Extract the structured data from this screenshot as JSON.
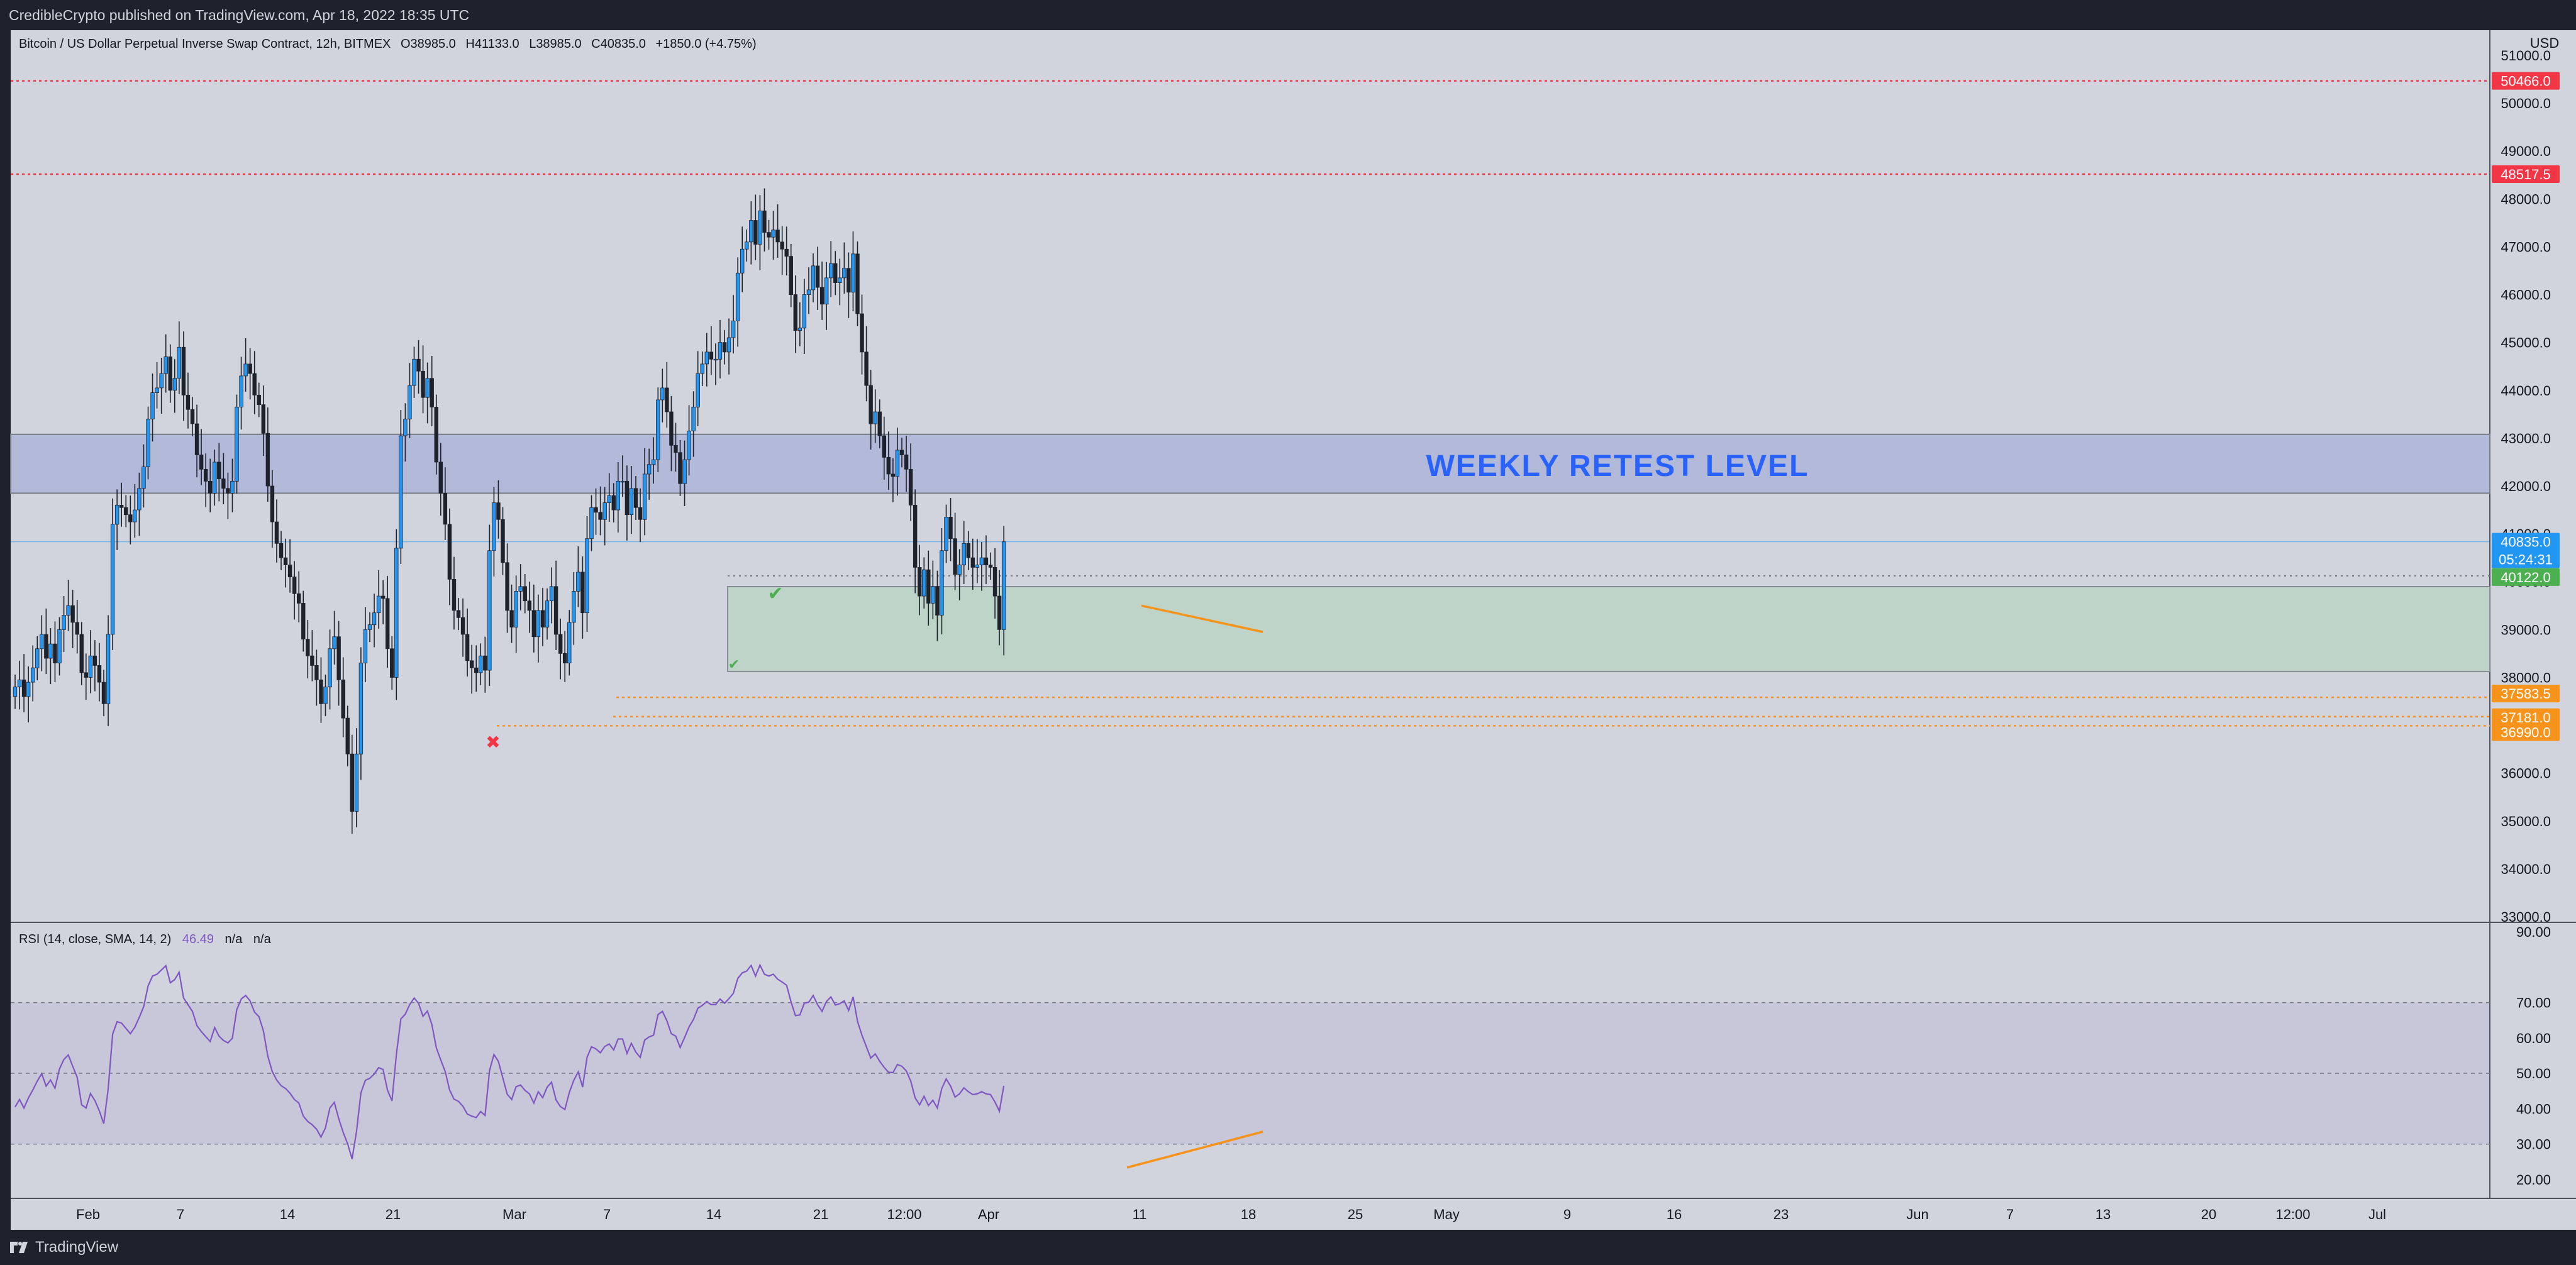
{
  "publisher": "CredibleCrypto published on TradingView.com, Apr 18, 2022 18:35 UTC",
  "footer": {
    "brand": "TradingView"
  },
  "colors": {
    "background": "#d1d4dc",
    "up_candle": "#2196f3",
    "down_candle": "#1e222d",
    "resistance_zone": "#b3b9d8",
    "support_zone": "#bfd4c9",
    "red_level": "#f23645",
    "orange_level": "#f7931a",
    "rsi_line": "#7e57c2",
    "annotation_text": "#2962ff"
  },
  "chart_data": [
    {
      "type": "candlestick",
      "title": "Bitcoin / US Dollar Perpetual Inverse Swap Contract, 12h, BITMEX",
      "ohlc_header": {
        "open_label": "O",
        "open": "38985.0",
        "high_label": "H",
        "high": "41133.0",
        "low_label": "L",
        "low": "38985.0",
        "close_label": "C",
        "close": "40835.0",
        "change": "+1850.0 (+4.75%)"
      },
      "currency_label": "USD",
      "y_ticks": [
        "51000.0",
        "50000.0",
        "49000.0",
        "48000.0",
        "47000.0",
        "46000.0",
        "45000.0",
        "44000.0",
        "43000.0",
        "42000.0",
        "41000.0",
        "40000.0",
        "39000.0",
        "38000.0",
        "37000.0",
        "36000.0",
        "35000.0",
        "34000.0",
        "33000.0"
      ],
      "ylim": [
        33000,
        51500
      ],
      "x_ticks": [
        "Feb",
        "7",
        "14",
        "21",
        "Mar",
        "7",
        "14",
        "21",
        "12:00",
        "Apr",
        "11",
        "18",
        "25",
        "May",
        "9",
        "16",
        "23",
        "Jun",
        "7",
        "13",
        "20",
        "12:00",
        "Jul"
      ],
      "price_levels": [
        {
          "label": "50466.0",
          "value": 50466,
          "color": "#f23645"
        },
        {
          "label": "48517.5",
          "value": 48517.5,
          "color": "#f23645"
        },
        {
          "label": "40122.0",
          "value": 40122,
          "color": "#4caf50"
        },
        {
          "label": "37583.5",
          "value": 37583.5,
          "color": "#f7931a"
        },
        {
          "label": "37181.0",
          "value": 37181,
          "color": "#f7931a"
        },
        {
          "label": "36990.0",
          "value": 36990,
          "color": "#f7931a"
        }
      ],
      "last_price": {
        "label": "40835.0",
        "countdown": "05:24:31",
        "value": 40835
      },
      "zones": [
        {
          "name": "weekly-retest",
          "label": "WEEKLY RETEST LEVEL",
          "from": 41850,
          "to": 43080
        },
        {
          "name": "support",
          "label": "",
          "from": 38120,
          "to": 39900
        }
      ],
      "closes": [
        37800,
        37950,
        37600,
        37900,
        38200,
        38600,
        38900,
        38400,
        38700,
        38300,
        39000,
        39300,
        39500,
        39150,
        38900,
        38100,
        38000,
        38450,
        38250,
        37900,
        37450,
        38900,
        41200,
        41600,
        41550,
        41400,
        41250,
        41500,
        41950,
        42400,
        43400,
        43950,
        44050,
        44350,
        44700,
        44000,
        44250,
        44900,
        43900,
        43600,
        43300,
        42650,
        42350,
        42100,
        41850,
        42500,
        42150,
        41950,
        41850,
        42100,
        43650,
        44300,
        44550,
        44350,
        43900,
        43700,
        43100,
        42000,
        41250,
        40800,
        40500,
        40350,
        40100,
        39750,
        39550,
        38800,
        38450,
        38250,
        37950,
        37450,
        37800,
        38600,
        38850,
        37950,
        37150,
        36400,
        35200,
        36400,
        38300,
        39000,
        39100,
        39350,
        39700,
        39650,
        38600,
        38000,
        40700,
        43050,
        43400,
        44100,
        44650,
        44400,
        43850,
        44250,
        43650,
        42500,
        41850,
        41200,
        40050,
        39400,
        39250,
        38900,
        38350,
        38200,
        38100,
        38450,
        38150,
        40650,
        41650,
        41300,
        40400,
        39400,
        39050,
        39800,
        39900,
        39600,
        39400,
        38850,
        39400,
        39050,
        39600,
        39900,
        38900,
        38500,
        38300,
        39150,
        39800,
        40200,
        39350,
        40900,
        41550,
        41450,
        41300,
        41650,
        41800,
        41500,
        42100,
        42100,
        41400,
        41950,
        41550,
        41300,
        42250,
        42450,
        42550,
        43800,
        44050,
        43550,
        42850,
        42700,
        42050,
        42550,
        43150,
        43650,
        44350,
        44550,
        44800,
        44650,
        44650,
        45000,
        44800,
        45100,
        45450,
        46450,
        46950,
        47100,
        47550,
        47050,
        47750,
        47300,
        47200,
        47350,
        47100,
        46950,
        46800,
        46000,
        45250,
        45300,
        46000,
        46100,
        46600,
        46150,
        45800,
        46350,
        46650,
        46250,
        46350,
        46550,
        46050,
        46850,
        45600,
        44800,
        44100,
        43300,
        43550,
        43050,
        42600,
        42250,
        42200,
        42750,
        42650,
        42350,
        41600,
        40300,
        39700,
        40250,
        39550,
        39900,
        39300,
        40650,
        41350,
        40900,
        40150,
        40350,
        40800,
        40500,
        40300,
        40350,
        40500,
        40350,
        40300,
        39700,
        39000,
        40835
      ]
    },
    {
      "type": "line",
      "title": "RSI (14, close, SMA, 14, 2)",
      "value_label": "46.49",
      "na_1": "n/a",
      "na_2": "n/a",
      "y_ticks": [
        "90.00",
        "70.00",
        "60.00",
        "50.00",
        "40.00",
        "30.00",
        "20.00"
      ],
      "ylim": [
        15,
        90
      ],
      "bands": [
        30,
        50,
        70
      ],
      "values": [
        40.5,
        42.6,
        40.2,
        43,
        45.3,
        47.8,
        49.9,
        46.4,
        48.1,
        45.8,
        51.2,
        53.9,
        55.2,
        52,
        48.9,
        41.1,
        40.2,
        44.3,
        42.3,
        39.4,
        35.8,
        45.6,
        61.1,
        64.6,
        64.2,
        62.7,
        61.2,
        63,
        65.8,
        68.8,
        74.7,
        77.5,
        78,
        79.2,
        80.4,
        75.6,
        76.5,
        78.6,
        71.3,
        69.4,
        67.5,
        63.5,
        61.8,
        60.4,
        59,
        62.9,
        60.5,
        59.3,
        58.6,
        59.9,
        68,
        71,
        72,
        70.5,
        67.3,
        66,
        62,
        54.9,
        50.5,
        48.1,
        46.5,
        45.7,
        44.4,
        42.6,
        41.6,
        37.9,
        36.4,
        35.5,
        34.2,
        32,
        34.6,
        40.2,
        41.8,
        37.2,
        33.3,
        30.1,
        25.8,
        33.6,
        44.5,
        48,
        48.6,
        49.8,
        51.6,
        51.1,
        45.2,
        42.2,
        55.4,
        65.4,
        66.7,
        69.4,
        71.3,
        69.8,
        66.1,
        67.6,
        63.8,
        57.2,
        53.8,
        50.5,
        45.3,
        42.7,
        42.1,
        40.7,
        38.5,
        37.9,
        37.5,
        39.2,
        38.1,
        50.8,
        55.3,
        53.4,
        48.7,
        44.1,
        42.6,
        46.2,
        46.7,
        45.2,
        44.2,
        41.6,
        44.8,
        43.1,
        46.1,
        47.5,
        42.5,
        40.6,
        39.8,
        44.6,
        48,
        50.4,
        46.1,
        54.5,
        57.5,
        56.9,
        55.8,
        57.6,
        58.3,
        56.6,
        59.7,
        59.7,
        55.6,
        58.5,
        56,
        54.5,
        59.4,
        60.3,
        60.8,
        66.6,
        67.5,
        64.9,
        61.2,
        60.5,
        57.3,
        60.1,
        63.1,
        65.2,
        68.4,
        69.2,
        70.3,
        69.4,
        69.4,
        71,
        69.8,
        71.1,
        72.6,
        76.8,
        78.4,
        78.9,
        80.5,
        77.5,
        80.6,
        78,
        77.5,
        78,
        76.6,
        75.8,
        74.9,
        70.2,
        66.3,
        66.5,
        69.8,
        70.1,
        72,
        69.4,
        67.5,
        70.3,
        71.6,
        69.3,
        69.7,
        70.5,
        67.8,
        71.6,
        64.7,
        60.8,
        57.5,
        54.3,
        55.5,
        53.4,
        51.7,
        50.3,
        50.2,
        52.5,
        52,
        50.7,
        47.8,
        43.1,
        41.1,
        43.5,
        40.9,
        42.4,
        40.2,
        45.7,
        48.4,
        46.4,
        43.3,
        44.2,
        45.9,
        44.8,
        44,
        44.2,
        44.8,
        44.2,
        44,
        41.9,
        39.3,
        46.49
      ]
    }
  ],
  "annotations": {
    "divergence_note": "",
    "check_mark": "✔",
    "cross_mark": "✖"
  }
}
